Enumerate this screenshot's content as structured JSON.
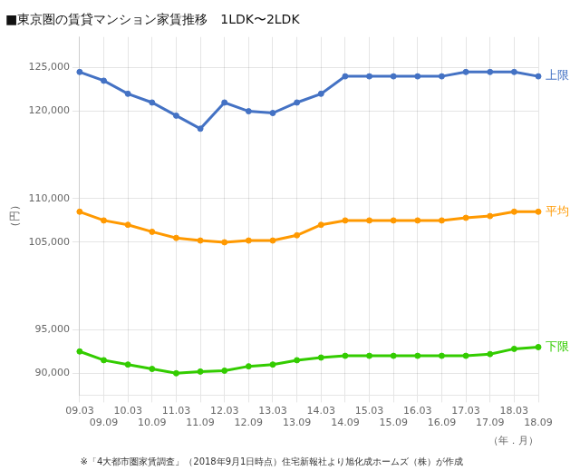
{
  "chart_data": {
    "type": "line",
    "title": "■東京圏の賃貸マンション家賃推移　1LDK〜2LDK",
    "y_label": "（円）",
    "x_label": "（年．月）",
    "footnote": "※「4大都市圏家賃調査」（2018年9月1日時点）住宅新報社より旭化成ホームズ（株）が作成",
    "categories": [
      "09.03",
      "09.09",
      "10.03",
      "10.09",
      "11.03",
      "11.09",
      "12.03",
      "12.09",
      "13.03",
      "13.09",
      "14.03",
      "14.09",
      "15.03",
      "15.09",
      "16.03",
      "16.09",
      "17.03",
      "17.09",
      "18.03",
      "18.09"
    ],
    "series": [
      {
        "name": "上限",
        "color": "#4472C4",
        "marker": "circle",
        "values": [
          124500,
          123500,
          122000,
          121000,
          119500,
          118000,
          121000,
          120000,
          119800,
          121000,
          122000,
          124000,
          124000,
          124000,
          124000,
          124000,
          124500,
          124500,
          124500,
          124000
        ]
      },
      {
        "name": "平均",
        "color": "#FF9900",
        "marker": "circle",
        "values": [
          108500,
          107500,
          107000,
          106200,
          105500,
          105200,
          105000,
          105200,
          105200,
          105800,
          107000,
          107500,
          107500,
          107500,
          107500,
          107500,
          107800,
          108000,
          108500,
          108500
        ]
      },
      {
        "name": "下限",
        "color": "#33CC00",
        "marker": "circle",
        "values": [
          92500,
          91500,
          91000,
          90500,
          90000,
          90200,
          90300,
          90800,
          91000,
          91500,
          91800,
          92000,
          92000,
          92000,
          92000,
          92000,
          92000,
          92200,
          92800,
          93000
        ]
      }
    ],
    "ylim": [
      87500,
      128500
    ],
    "yticks": [
      {
        "value": 90000,
        "label": "90,000"
      },
      {
        "value": 95000,
        "label": "95,000"
      },
      {
        "value": 105000,
        "label": "105,000"
      },
      {
        "value": 110000,
        "label": "110,000"
      },
      {
        "value": 120000,
        "label": "120,000"
      },
      {
        "value": 125000,
        "label": "125,000"
      }
    ],
    "grid": true
  }
}
